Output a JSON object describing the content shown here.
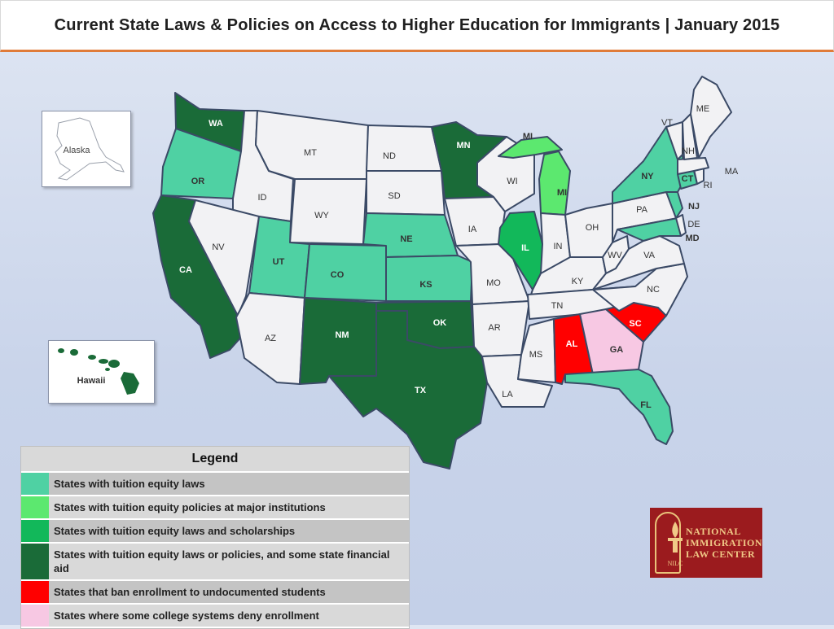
{
  "title": "Current State Laws & Policies on Access to Higher Education for Immigrants  |  January 2015",
  "colors": {
    "tuition_equity_laws": "#4fd1a3",
    "major_institutions": "#5ce86f",
    "laws_and_scholarships": "#12b85a",
    "laws_policies_state_aid": "#1a6b38",
    "ban_enrollment": "#ff0000",
    "some_deny": "#f7c8e3",
    "none": "#f2f2f4"
  },
  "states": [
    {
      "code": "WA",
      "label": "WA",
      "cat": "laws_policies_state_aid"
    },
    {
      "code": "OR",
      "label": "OR",
      "cat": "tuition_equity_laws"
    },
    {
      "code": "CA",
      "label": "CA",
      "cat": "laws_policies_state_aid"
    },
    {
      "code": "ID",
      "label": "ID",
      "cat": "none"
    },
    {
      "code": "NV",
      "label": "NV",
      "cat": "none"
    },
    {
      "code": "MT",
      "label": "MT",
      "cat": "none"
    },
    {
      "code": "WY",
      "label": "WY",
      "cat": "none"
    },
    {
      "code": "UT",
      "label": "UT",
      "cat": "tuition_equity_laws"
    },
    {
      "code": "AZ",
      "label": "AZ",
      "cat": "none"
    },
    {
      "code": "CO",
      "label": "CO",
      "cat": "tuition_equity_laws"
    },
    {
      "code": "NM",
      "label": "NM",
      "cat": "laws_policies_state_aid"
    },
    {
      "code": "ND",
      "label": "ND",
      "cat": "none"
    },
    {
      "code": "SD",
      "label": "SD",
      "cat": "none"
    },
    {
      "code": "NE",
      "label": "NE",
      "cat": "tuition_equity_laws"
    },
    {
      "code": "KS",
      "label": "KS",
      "cat": "tuition_equity_laws"
    },
    {
      "code": "OK",
      "label": "OK",
      "cat": "laws_policies_state_aid"
    },
    {
      "code": "TX",
      "label": "TX",
      "cat": "laws_policies_state_aid"
    },
    {
      "code": "MN",
      "label": "MN",
      "cat": "laws_policies_state_aid"
    },
    {
      "code": "IA",
      "label": "IA",
      "cat": "none"
    },
    {
      "code": "MO",
      "label": "MO",
      "cat": "none"
    },
    {
      "code": "AR",
      "label": "AR",
      "cat": "none"
    },
    {
      "code": "LA",
      "label": "LA",
      "cat": "none"
    },
    {
      "code": "WI",
      "label": "WI",
      "cat": "none"
    },
    {
      "code": "IL",
      "label": "IL",
      "cat": "laws_and_scholarships"
    },
    {
      "code": "MS",
      "label": "MS",
      "cat": "none"
    },
    {
      "code": "MI",
      "label": "MI",
      "cat": "major_institutions"
    },
    {
      "code": "MI_UP",
      "label": "MI",
      "cat": "major_institutions"
    },
    {
      "code": "IN",
      "label": "IN",
      "cat": "none"
    },
    {
      "code": "KY",
      "label": "KY",
      "cat": "none"
    },
    {
      "code": "TN",
      "label": "TN",
      "cat": "none"
    },
    {
      "code": "AL",
      "label": "AL",
      "cat": "ban_enrollment"
    },
    {
      "code": "OH",
      "label": "OH",
      "cat": "none"
    },
    {
      "code": "WV",
      "label": "WV",
      "cat": "none"
    },
    {
      "code": "GA",
      "label": "GA",
      "cat": "some_deny"
    },
    {
      "code": "FL",
      "label": "FL",
      "cat": "tuition_equity_laws"
    },
    {
      "code": "SC",
      "label": "SC",
      "cat": "ban_enrollment"
    },
    {
      "code": "NC",
      "label": "NC",
      "cat": "none"
    },
    {
      "code": "VA",
      "label": "VA",
      "cat": "none"
    },
    {
      "code": "PA",
      "label": "PA",
      "cat": "none"
    },
    {
      "code": "NY",
      "label": "NY",
      "cat": "tuition_equity_laws"
    },
    {
      "code": "NJ",
      "label": "NJ",
      "cat": "tuition_equity_laws"
    },
    {
      "code": "MD",
      "label": "MD",
      "cat": "tuition_equity_laws"
    },
    {
      "code": "DE",
      "label": "DE",
      "cat": "none"
    },
    {
      "code": "CT",
      "label": "CT",
      "cat": "tuition_equity_laws"
    },
    {
      "code": "RI",
      "label": "RI",
      "cat": "none"
    },
    {
      "code": "MA",
      "label": "MA",
      "cat": "none"
    },
    {
      "code": "VT",
      "label": "VT",
      "cat": "none"
    },
    {
      "code": "NH",
      "label": "NH",
      "cat": "none"
    },
    {
      "code": "ME",
      "label": "ME",
      "cat": "none"
    }
  ],
  "insets": {
    "alaska": {
      "label": "Alaska",
      "cat": "none"
    },
    "hawaii": {
      "label": "Hawaii",
      "cat": "laws_policies_state_aid"
    }
  },
  "legend": {
    "heading": "Legend",
    "items": [
      {
        "cat": "tuition_equity_laws",
        "text": "States with tuition equity laws"
      },
      {
        "cat": "major_institutions",
        "text": "States with tuition equity policies at major institutions"
      },
      {
        "cat": "laws_and_scholarships",
        "text": "States with tuition equity laws and scholarships"
      },
      {
        "cat": "laws_policies_state_aid",
        "text": "States with tuition equity laws or policies, and some state financial aid"
      },
      {
        "cat": "ban_enrollment",
        "text": "States that ban enrollment to undocumented students"
      },
      {
        "cat": "some_deny",
        "text": "States where some college systems deny enrollment"
      }
    ]
  },
  "logo": {
    "line1": "National",
    "line2": "Immigration",
    "line3": "Law Center",
    "mark": "NILC"
  }
}
